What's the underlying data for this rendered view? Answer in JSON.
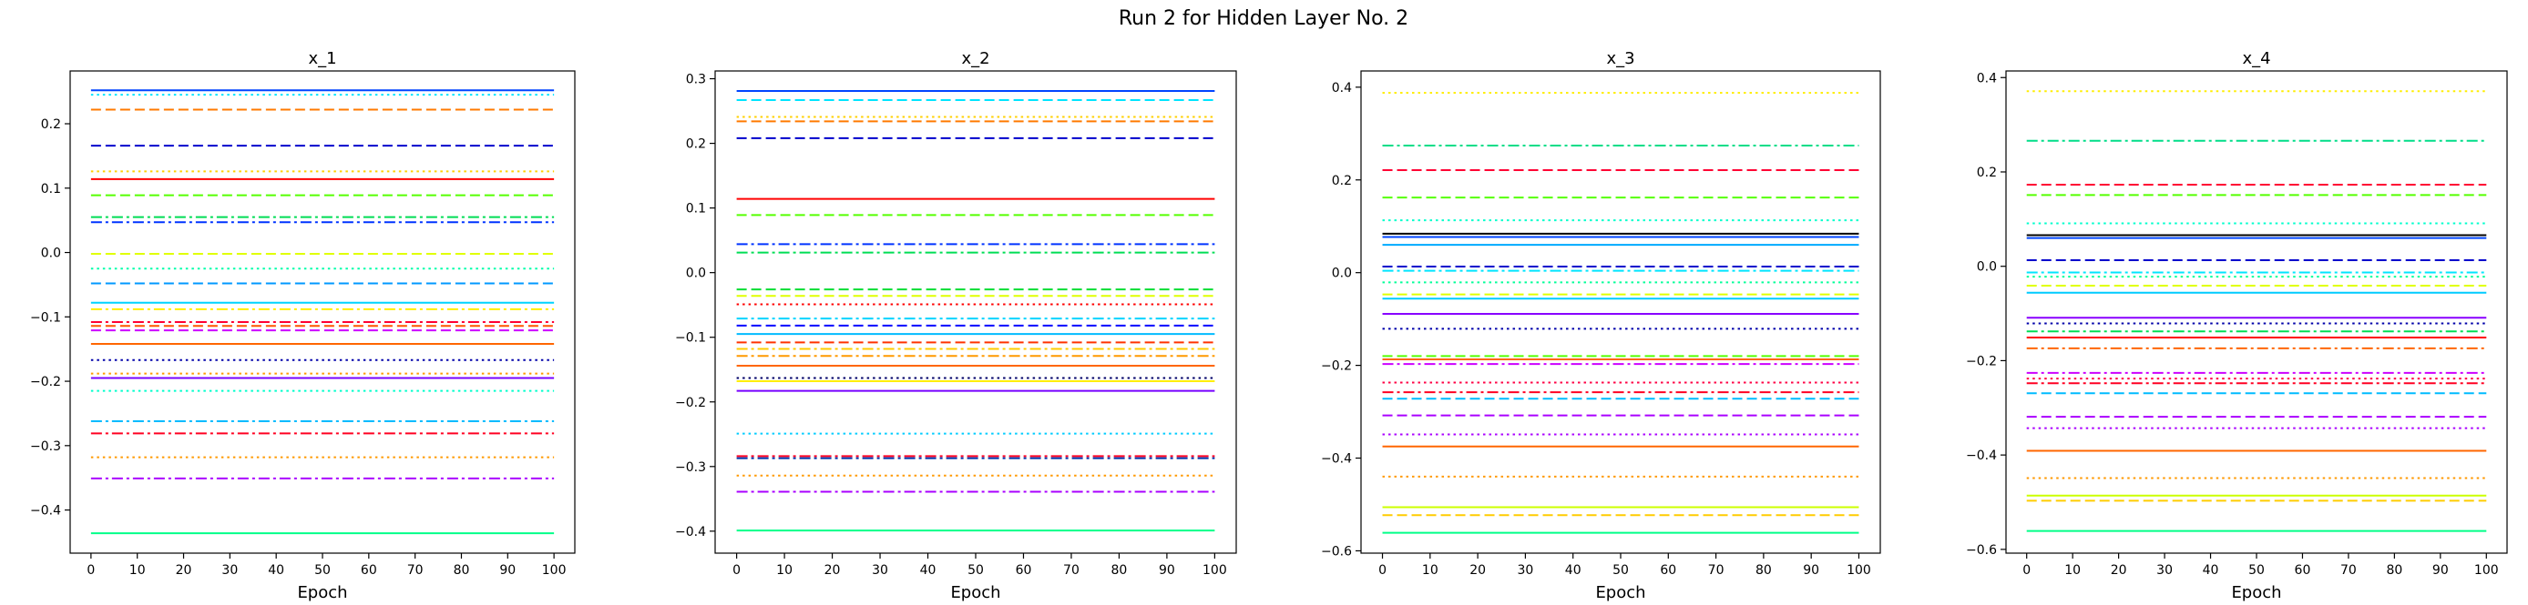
{
  "figure": {
    "title": "Run 2 for Hidden Layer No. 2"
  },
  "chart_data": [
    {
      "type": "line",
      "title": "x_1",
      "xlabel": "Epoch",
      "ylabel": "",
      "xlim": [
        -4.5,
        104.5
      ],
      "ylim": [
        -0.467,
        0.282
      ],
      "xticks": [
        0,
        10,
        20,
        30,
        40,
        50,
        60,
        70,
        80,
        90,
        100
      ],
      "yticks": [
        -0.4,
        -0.3,
        -0.2,
        -0.1,
        0.0,
        0.1,
        0.2
      ],
      "ytick_labels": [
        "−0.4",
        "−0.3",
        "−0.2",
        "−0.1",
        "0.0",
        "0.1",
        "0.2"
      ],
      "x": [
        0,
        100
      ],
      "series": [
        {
          "value": 0.252,
          "color": "#0044ff",
          "style": "solid"
        },
        {
          "value": 0.245,
          "color": "#00e5ff",
          "style": "dotted"
        },
        {
          "value": 0.222,
          "color": "#ff7a00",
          "style": "dashed"
        },
        {
          "value": 0.166,
          "color": "#0000cc",
          "style": "dashed"
        },
        {
          "value": 0.126,
          "color": "#ffd000",
          "style": "dotted"
        },
        {
          "value": 0.114,
          "color": "#ff0000",
          "style": "solid"
        },
        {
          "value": 0.089,
          "color": "#55ff00",
          "style": "dashed"
        },
        {
          "value": 0.055,
          "color": "#00dd55",
          "style": "dashdot"
        },
        {
          "value": 0.047,
          "color": "#0033ff",
          "style": "dashdot"
        },
        {
          "value": -0.002,
          "color": "#e0ff00",
          "style": "dashed"
        },
        {
          "value": -0.025,
          "color": "#00ffaa",
          "style": "dotted"
        },
        {
          "value": -0.048,
          "color": "#0099ff",
          "style": "dashed"
        },
        {
          "value": -0.078,
          "color": "#00d4ff",
          "style": "solid"
        },
        {
          "value": -0.088,
          "color": "#ffee00",
          "style": "dashdot"
        },
        {
          "value": -0.108,
          "color": "#ff0033",
          "style": "dashdot"
        },
        {
          "value": -0.114,
          "color": "#ff5500",
          "style": "dashed"
        },
        {
          "value": -0.121,
          "color": "#cc00ff",
          "style": "dashed"
        },
        {
          "value": -0.142,
          "color": "#ff6600",
          "style": "solid"
        },
        {
          "value": -0.167,
          "color": "#0000aa",
          "style": "dotted"
        },
        {
          "value": -0.188,
          "color": "#ff9900",
          "style": "dotted"
        },
        {
          "value": -0.195,
          "color": "#7700ff",
          "style": "solid"
        },
        {
          "value": -0.215,
          "color": "#00ffcc",
          "style": "dotted"
        },
        {
          "value": -0.262,
          "color": "#00bbff",
          "style": "dashdot"
        },
        {
          "value": -0.281,
          "color": "#ff0022",
          "style": "dashdot"
        },
        {
          "value": -0.318,
          "color": "#ff9900",
          "style": "dotted"
        },
        {
          "value": -0.351,
          "color": "#aa00ff",
          "style": "dashdot"
        },
        {
          "value": -0.436,
          "color": "#00ff88",
          "style": "solid"
        }
      ]
    },
    {
      "type": "line",
      "title": "x_2",
      "xlabel": "Epoch",
      "ylabel": "",
      "xlim": [
        -4.5,
        104.5
      ],
      "ylim": [
        -0.434,
        0.312
      ],
      "xticks": [
        0,
        10,
        20,
        30,
        40,
        50,
        60,
        70,
        80,
        90,
        100
      ],
      "yticks": [
        -0.4,
        -0.3,
        -0.2,
        -0.1,
        0.0,
        0.1,
        0.2,
        0.3
      ],
      "ytick_labels": [
        "−0.4",
        "−0.3",
        "−0.2",
        "−0.1",
        "0.0",
        "0.1",
        "0.2",
        "0.3"
      ],
      "x": [
        0,
        100
      ],
      "series": [
        {
          "value": 0.281,
          "color": "#0044ff",
          "style": "solid"
        },
        {
          "value": 0.267,
          "color": "#00e5ff",
          "style": "dashed"
        },
        {
          "value": 0.241,
          "color": "#ffd000",
          "style": "dotted"
        },
        {
          "value": 0.234,
          "color": "#ff7a00",
          "style": "dashed"
        },
        {
          "value": 0.208,
          "color": "#0000cc",
          "style": "dashed"
        },
        {
          "value": 0.114,
          "color": "#ff0000",
          "style": "solid"
        },
        {
          "value": 0.089,
          "color": "#55ff00",
          "style": "dashed"
        },
        {
          "value": 0.044,
          "color": "#0033ff",
          "style": "dashdot"
        },
        {
          "value": 0.031,
          "color": "#00dd55",
          "style": "dashdot"
        },
        {
          "value": -0.026,
          "color": "#00dd33",
          "style": "dashed"
        },
        {
          "value": -0.036,
          "color": "#e0ff00",
          "style": "dashed"
        },
        {
          "value": -0.049,
          "color": "#ff0000",
          "style": "dotted"
        },
        {
          "value": -0.071,
          "color": "#00d4ff",
          "style": "dashdot"
        },
        {
          "value": -0.082,
          "color": "#0000ff",
          "style": "dashed"
        },
        {
          "value": -0.095,
          "color": "#00bbff",
          "style": "solid"
        },
        {
          "value": -0.108,
          "color": "#ff3300",
          "style": "dashed"
        },
        {
          "value": -0.118,
          "color": "#ffcc00",
          "style": "dashdot"
        },
        {
          "value": -0.129,
          "color": "#ff9900",
          "style": "dashdot"
        },
        {
          "value": -0.144,
          "color": "#ff6600",
          "style": "solid"
        },
        {
          "value": -0.163,
          "color": "#000066",
          "style": "dotted"
        },
        {
          "value": -0.168,
          "color": "#ffee00",
          "style": "solid"
        },
        {
          "value": -0.183,
          "color": "#7700ff",
          "style": "solid"
        },
        {
          "value": -0.249,
          "color": "#00ccff",
          "style": "dotted"
        },
        {
          "value": -0.284,
          "color": "#ff0022",
          "style": "dashdot"
        },
        {
          "value": -0.287,
          "color": "#0033aa",
          "style": "dashdot"
        },
        {
          "value": -0.314,
          "color": "#ff9900",
          "style": "dotted"
        },
        {
          "value": -0.339,
          "color": "#aa00ff",
          "style": "dashdot"
        },
        {
          "value": -0.399,
          "color": "#00ff88",
          "style": "solid"
        }
      ]
    },
    {
      "type": "line",
      "title": "x_3",
      "xlabel": "Epoch",
      "ylabel": "",
      "xlim": [
        -4.5,
        104.5
      ],
      "ylim": [
        -0.605,
        0.435
      ],
      "xticks": [
        0,
        10,
        20,
        30,
        40,
        50,
        60,
        70,
        80,
        90,
        100
      ],
      "yticks": [
        -0.6,
        -0.4,
        -0.2,
        0.0,
        0.2,
        0.4
      ],
      "ytick_labels": [
        "−0.6",
        "−0.4",
        "−0.2",
        "0.0",
        "0.2",
        "0.4"
      ],
      "x": [
        0,
        100
      ],
      "series": [
        {
          "value": 0.388,
          "color": "#ffee00",
          "style": "dotted"
        },
        {
          "value": 0.274,
          "color": "#00dd88",
          "style": "dashdot"
        },
        {
          "value": 0.221,
          "color": "#ff0033",
          "style": "dashed"
        },
        {
          "value": 0.162,
          "color": "#55ff00",
          "style": "dashed"
        },
        {
          "value": 0.113,
          "color": "#00ffcc",
          "style": "dotted"
        },
        {
          "value": 0.084,
          "color": "#000000",
          "style": "solid"
        },
        {
          "value": 0.077,
          "color": "#0044ff",
          "style": "solid"
        },
        {
          "value": 0.06,
          "color": "#00aaff",
          "style": "solid"
        },
        {
          "value": 0.013,
          "color": "#0000cc",
          "style": "dashed"
        },
        {
          "value": 0.004,
          "color": "#00e5ff",
          "style": "dashdot"
        },
        {
          "value": -0.021,
          "color": "#00ff99",
          "style": "dotted"
        },
        {
          "value": -0.047,
          "color": "#e0ff00",
          "style": "dashed"
        },
        {
          "value": -0.056,
          "color": "#00ccff",
          "style": "solid"
        },
        {
          "value": -0.089,
          "color": "#8800ff",
          "style": "solid"
        },
        {
          "value": -0.121,
          "color": "#0000aa",
          "style": "dotted"
        },
        {
          "value": -0.18,
          "color": "#55ff00",
          "style": "dashed"
        },
        {
          "value": -0.187,
          "color": "#ff6600",
          "style": "solid"
        },
        {
          "value": -0.197,
          "color": "#cc00ff",
          "style": "dashdot"
        },
        {
          "value": -0.237,
          "color": "#ff0044",
          "style": "dotted"
        },
        {
          "value": -0.258,
          "color": "#ff0022",
          "style": "dashdot"
        },
        {
          "value": -0.272,
          "color": "#00bbff",
          "style": "dashed"
        },
        {
          "value": -0.308,
          "color": "#aa00ff",
          "style": "dashed"
        },
        {
          "value": -0.349,
          "color": "#aa00ff",
          "style": "dotted"
        },
        {
          "value": -0.375,
          "color": "#ff6600",
          "style": "solid"
        },
        {
          "value": -0.44,
          "color": "#ff9900",
          "style": "dotted"
        },
        {
          "value": -0.506,
          "color": "#ccff00",
          "style": "solid"
        },
        {
          "value": -0.523,
          "color": "#ffcc00",
          "style": "dashed"
        },
        {
          "value": -0.561,
          "color": "#00ff88",
          "style": "solid"
        }
      ]
    },
    {
      "type": "line",
      "title": "x_4",
      "xlabel": "Epoch",
      "ylabel": "",
      "xlim": [
        -4.5,
        104.5
      ],
      "ylim": [
        -0.608,
        0.414
      ],
      "xticks": [
        0,
        10,
        20,
        30,
        40,
        50,
        60,
        70,
        80,
        90,
        100
      ],
      "yticks": [
        -0.6,
        -0.4,
        -0.2,
        0.0,
        0.2,
        0.4
      ],
      "ytick_labels": [
        "−0.6",
        "−0.4",
        "−0.2",
        "0.0",
        "0.2",
        "0.4"
      ],
      "x": [
        0,
        100
      ],
      "series": [
        {
          "value": 0.371,
          "color": "#ffee00",
          "style": "dotted"
        },
        {
          "value": 0.266,
          "color": "#00dd88",
          "style": "dashdot"
        },
        {
          "value": 0.173,
          "color": "#ff0033",
          "style": "dashed"
        },
        {
          "value": 0.151,
          "color": "#55ff00",
          "style": "dashed"
        },
        {
          "value": 0.091,
          "color": "#00ffcc",
          "style": "dotted"
        },
        {
          "value": 0.066,
          "color": "#000000",
          "style": "solid"
        },
        {
          "value": 0.06,
          "color": "#0044ff",
          "style": "solid"
        },
        {
          "value": 0.013,
          "color": "#0000cc",
          "style": "dashed"
        },
        {
          "value": -0.013,
          "color": "#00e5ff",
          "style": "dashdot"
        },
        {
          "value": -0.022,
          "color": "#00ff99",
          "style": "dotted"
        },
        {
          "value": -0.041,
          "color": "#e0ff00",
          "style": "dashed"
        },
        {
          "value": -0.056,
          "color": "#00ccff",
          "style": "solid"
        },
        {
          "value": -0.109,
          "color": "#8800ff",
          "style": "solid"
        },
        {
          "value": -0.121,
          "color": "#0000aa",
          "style": "dotted"
        },
        {
          "value": -0.138,
          "color": "#00dd55",
          "style": "dashdot"
        },
        {
          "value": -0.151,
          "color": "#ff0000",
          "style": "solid"
        },
        {
          "value": -0.174,
          "color": "#ff6600",
          "style": "dashdot"
        },
        {
          "value": -0.226,
          "color": "#cc00ff",
          "style": "dashdot"
        },
        {
          "value": -0.238,
          "color": "#ff0044",
          "style": "dotted"
        },
        {
          "value": -0.248,
          "color": "#ff0022",
          "style": "dashdot"
        },
        {
          "value": -0.269,
          "color": "#00bbff",
          "style": "dashed"
        },
        {
          "value": -0.319,
          "color": "#aa00ff",
          "style": "dashed"
        },
        {
          "value": -0.343,
          "color": "#aa00ff",
          "style": "dotted"
        },
        {
          "value": -0.391,
          "color": "#ff6600",
          "style": "solid"
        },
        {
          "value": -0.449,
          "color": "#ff9900",
          "style": "dotted"
        },
        {
          "value": -0.486,
          "color": "#ccff00",
          "style": "solid"
        },
        {
          "value": -0.497,
          "color": "#ffcc00",
          "style": "dashed"
        },
        {
          "value": -0.561,
          "color": "#00ff88",
          "style": "solid"
        }
      ]
    }
  ]
}
